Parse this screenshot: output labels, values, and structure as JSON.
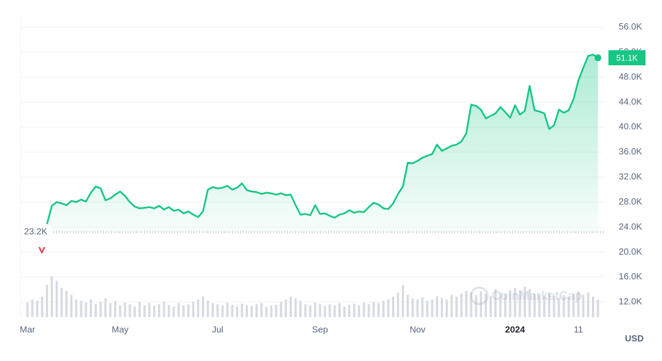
{
  "chart_data": {
    "type": "area-line",
    "categories": [
      "Mar",
      null,
      null,
      null,
      null,
      null,
      null,
      null,
      null,
      null,
      null,
      null,
      null,
      null,
      null,
      null,
      null,
      null,
      null,
      "May",
      null,
      null,
      null,
      null,
      null,
      null,
      null,
      null,
      null,
      null,
      null,
      null,
      null,
      null,
      null,
      null,
      null,
      null,
      null,
      "Jul",
      null,
      null,
      null,
      null,
      null,
      null,
      null,
      null,
      null,
      null,
      null,
      null,
      null,
      null,
      null,
      null,
      null,
      null,
      null,
      null,
      "Sep",
      null,
      null,
      null,
      null,
      null,
      null,
      null,
      null,
      null,
      null,
      null,
      null,
      null,
      null,
      null,
      null,
      null,
      null,
      null,
      "Nov",
      null,
      null,
      null,
      null,
      null,
      null,
      null,
      null,
      null,
      null,
      null,
      null,
      null,
      null,
      null,
      null,
      null,
      null,
      null,
      "2024",
      null,
      null,
      null,
      null,
      null,
      null,
      null,
      null,
      null,
      null,
      null,
      null,
      "11",
      null,
      null,
      null,
      null
    ],
    "series": [
      {
        "color": "#16c784",
        "values": [
          null,
          null,
          null,
          null,
          24500,
          27400,
          28000,
          27800,
          27500,
          28200,
          28000,
          28400,
          28100,
          29500,
          30500,
          30200,
          28300,
          28600,
          29200,
          29700,
          29000,
          28000,
          27300,
          27000,
          27100,
          27200,
          27000,
          27400,
          26800,
          27200,
          26600,
          26800,
          26200,
          26500,
          26000,
          25600,
          26500,
          30000,
          30400,
          30200,
          30300,
          30600,
          30000,
          30300,
          31000,
          29900,
          29700,
          29600,
          29300,
          29500,
          29400,
          29200,
          29400,
          29100,
          29200,
          27500,
          26000,
          26100,
          25900,
          27500,
          26100,
          26200,
          25800,
          25500,
          26000,
          26200,
          26700,
          26300,
          26500,
          26400,
          27200,
          27900,
          27600,
          27000,
          26900,
          27800,
          29300,
          30500,
          34300,
          34200,
          34600,
          35100,
          35400,
          35700,
          37200,
          36200,
          36600,
          37000,
          37200,
          37700,
          39000,
          43600,
          43400,
          42800,
          41400,
          41800,
          42200,
          43200,
          42400,
          41500,
          43500,
          42000,
          42600,
          46600,
          42700,
          42500,
          42200,
          39700,
          40300,
          42800,
          42300,
          42700,
          44500,
          47500,
          49500,
          51400,
          51600,
          51100
        ]
      },
      {
        "color": "#d6dae1",
        "axis": "y2",
        "values": [
          25,
          30,
          28,
          35,
          55,
          70,
          62,
          50,
          45,
          38,
          30,
          28,
          25,
          30,
          22,
          26,
          32,
          24,
          28,
          20,
          25,
          22,
          18,
          26,
          20,
          24,
          19,
          22,
          27,
          21,
          18,
          24,
          20,
          22,
          26,
          30,
          35,
          28,
          24,
          22,
          20,
          25,
          21,
          18,
          23,
          20,
          19,
          22,
          24,
          18,
          20,
          21,
          26,
          30,
          35,
          32,
          28,
          22,
          20,
          25,
          23,
          19,
          22,
          20,
          24,
          18,
          21,
          23,
          20,
          25,
          22,
          26,
          24,
          28,
          30,
          35,
          42,
          55,
          38,
          32,
          30,
          34,
          28,
          30,
          36,
          33,
          30,
          38,
          35,
          40,
          45,
          42,
          38,
          44,
          40,
          36,
          48,
          42,
          39,
          45,
          50,
          46,
          52,
          48,
          40,
          38,
          35,
          42,
          36,
          33,
          38,
          35,
          40,
          44,
          38,
          42,
          35,
          30
        ]
      }
    ],
    "ylim": [
      9600,
      57600
    ],
    "yticks": [
      {
        "value": 12000,
        "label": "12.0K"
      },
      {
        "value": 16000,
        "label": "16.0K"
      },
      {
        "value": 20000,
        "label": "20.0K"
      },
      {
        "value": 24000,
        "label": "24.0K"
      },
      {
        "value": 28000,
        "label": "28.0K"
      },
      {
        "value": 32000,
        "label": "32.0K"
      },
      {
        "value": 36000,
        "label": "36.0K"
      },
      {
        "value": 40000,
        "label": "40.0K"
      },
      {
        "value": 44000,
        "label": "44.0K"
      },
      {
        "value": 48000,
        "label": "48.0K"
      },
      {
        "value": 52000,
        "label": "52.0K"
      },
      {
        "value": 56000,
        "label": "56.0K"
      }
    ],
    "y2lim": [
      0,
      100
    ],
    "grid": true,
    "y_axis_label": "USD",
    "start": {
      "value": 23200,
      "label": "23.2K"
    },
    "current": {
      "value": 51100,
      "label": "51.1K"
    },
    "watermark": "CoinMarketCap"
  }
}
